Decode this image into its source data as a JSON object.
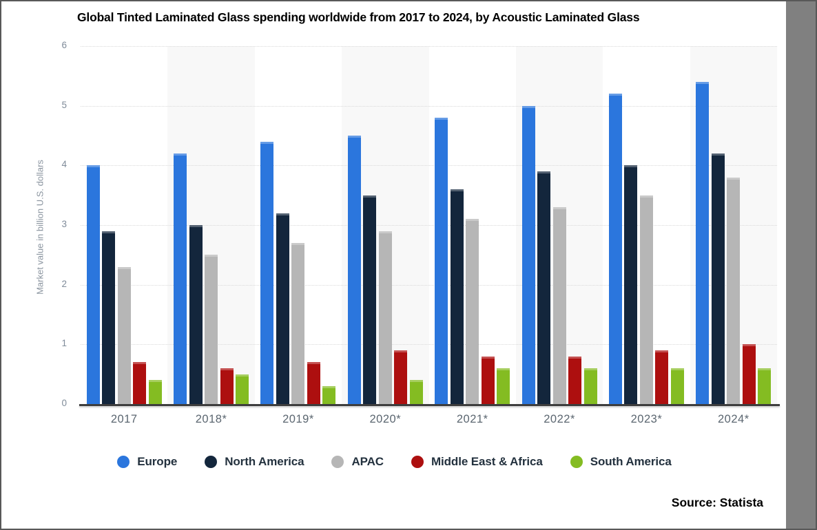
{
  "title": "Global Tinted Laminated Glass spending worldwide from 2017 to 2024, by Acoustic Laminated Glass",
  "source": "Source: Statista",
  "chart_data": {
    "type": "bar",
    "title": "Global Tinted Laminated Glass spending worldwide from 2017 to 2024, by Acoustic Laminated Glass",
    "xlabel": "",
    "ylabel": "Market value in billion U.S. dollars",
    "ylim": [
      0,
      6
    ],
    "yticks": [
      0,
      1,
      2,
      3,
      4,
      5,
      6
    ],
    "grid": "horizontal-dotted",
    "legend_position": "bottom",
    "alternating_column_shading": true,
    "categories": [
      "2017",
      "2018*",
      "2019*",
      "2020*",
      "2021*",
      "2022*",
      "2023*",
      "2024*"
    ],
    "series": [
      {
        "name": "Europe",
        "color": "#2b76dd",
        "values": [
          4.0,
          4.2,
          4.4,
          4.5,
          4.8,
          5.0,
          5.2,
          5.4
        ]
      },
      {
        "name": "North America",
        "color": "#13263c",
        "values": [
          2.9,
          3.0,
          3.2,
          3.5,
          3.6,
          3.9,
          4.0,
          4.2
        ]
      },
      {
        "name": "APAC",
        "color": "#b6b6b6",
        "values": [
          2.3,
          2.5,
          2.7,
          2.9,
          3.1,
          3.3,
          3.5,
          3.8
        ]
      },
      {
        "name": "Middle East & Africa",
        "color": "#ad0f0f",
        "values": [
          0.7,
          0.6,
          0.7,
          0.9,
          0.8,
          0.8,
          0.9,
          1.0
        ]
      },
      {
        "name": "South America",
        "color": "#84bc22",
        "values": [
          0.4,
          0.5,
          0.3,
          0.4,
          0.6,
          0.6,
          0.6,
          0.6
        ]
      }
    ],
    "colors": {
      "stripe": "#f8f8f8",
      "gridline": "#d9d9d9",
      "axis_line": "#3d3d3d",
      "y_tick_text": "#7f8b99",
      "x_label_text": "#5b6670",
      "right_band": "#808080"
    }
  }
}
